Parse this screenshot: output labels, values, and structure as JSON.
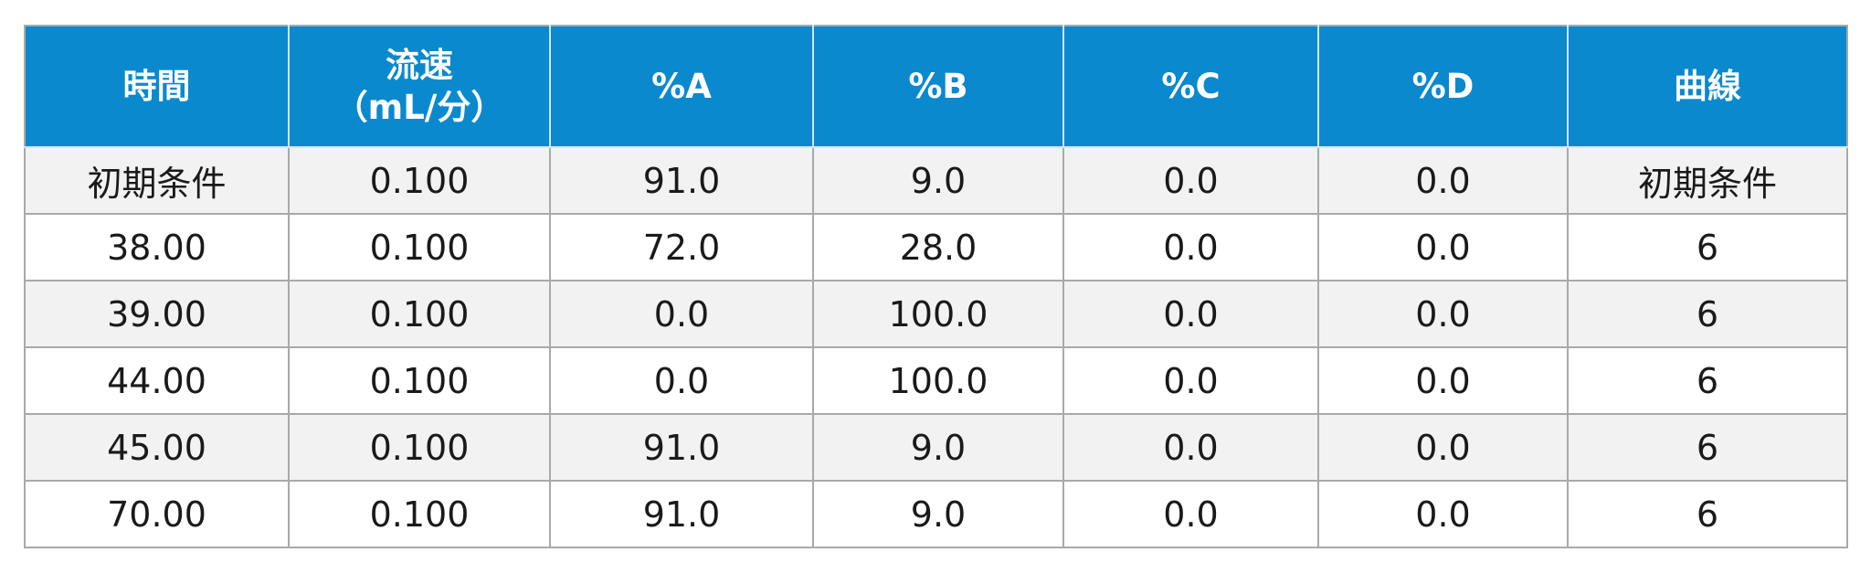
{
  "table": {
    "headers": [
      {
        "lines": [
          "時間"
        ]
      },
      {
        "lines": [
          "流速",
          "（mL/分）"
        ]
      },
      {
        "lines": [
          "%A"
        ]
      },
      {
        "lines": [
          "%B"
        ]
      },
      {
        "lines": [
          "%C"
        ]
      },
      {
        "lines": [
          "%D"
        ]
      },
      {
        "lines": [
          "曲線"
        ]
      }
    ],
    "rows": [
      [
        "初期条件",
        "0.100",
        "91.0",
        "9.0",
        "0.0",
        "0.0",
        "初期条件"
      ],
      [
        "38.00",
        "0.100",
        "72.0",
        "28.0",
        "0.0",
        "0.0",
        "6"
      ],
      [
        "39.00",
        "0.100",
        "0.0",
        "100.0",
        "0.0",
        "0.0",
        "6"
      ],
      [
        "44.00",
        "0.100",
        "0.0",
        "100.0",
        "0.0",
        "0.0",
        "6"
      ],
      [
        "45.00",
        "0.100",
        "91.0",
        "9.0",
        "0.0",
        "0.0",
        "6"
      ],
      [
        "70.00",
        "0.100",
        "91.0",
        "9.0",
        "0.0",
        "0.0",
        "6"
      ]
    ]
  },
  "colors": {
    "header_bg": "#0a89cf",
    "header_text": "#ffffff",
    "row_alt_bg": "#f2f2f3",
    "border": "#a9a9a9"
  }
}
